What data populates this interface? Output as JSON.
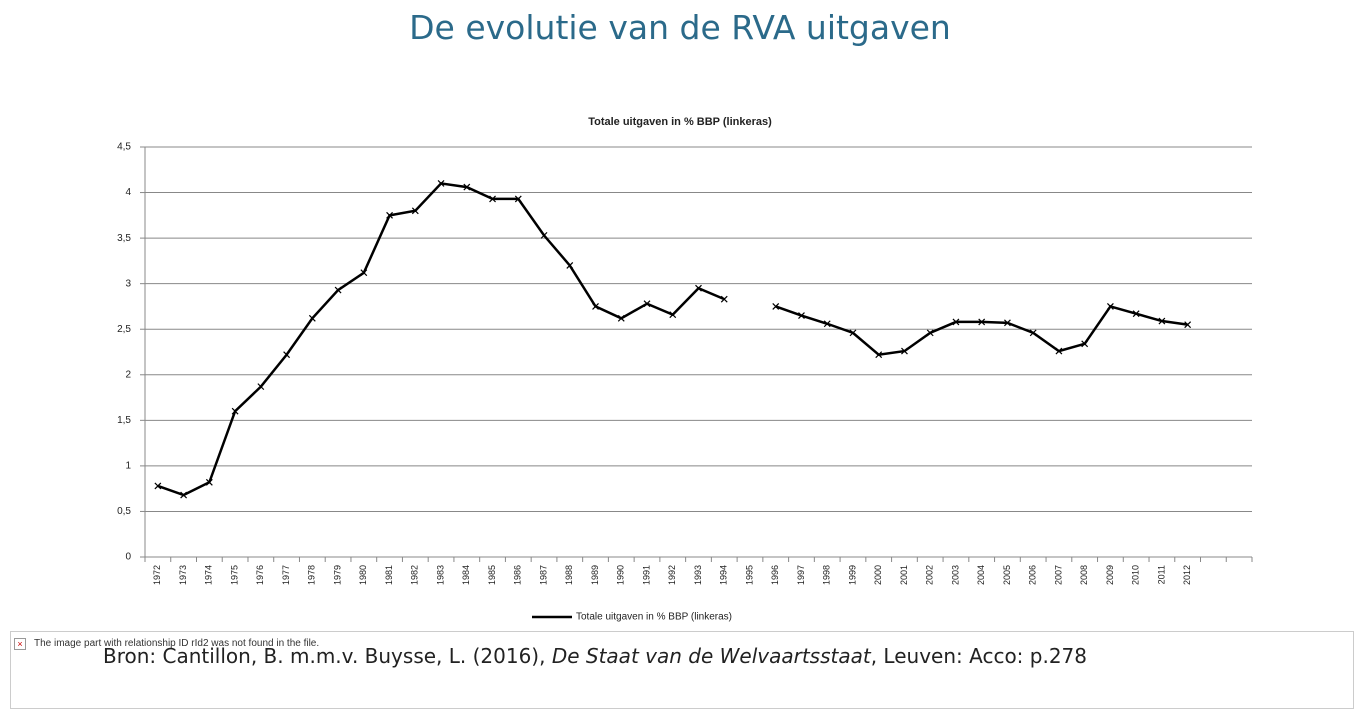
{
  "slide_title": "De evolutie van de RVA uitgaven",
  "chart_data": {
    "type": "line",
    "title": "Totale uitgaven in % BBP (linkeras)",
    "categories": [
      "1972",
      "1973",
      "1974",
      "1975",
      "1976",
      "1977",
      "1978",
      "1979",
      "1980",
      "1981",
      "1982",
      "1983",
      "1984",
      "1985",
      "1986",
      "1987",
      "1988",
      "1989",
      "1990",
      "1991",
      "1992",
      "1993",
      "1994",
      "1995",
      "1996",
      "1997",
      "1998",
      "1999",
      "2000",
      "2001",
      "2002",
      "2003",
      "2004",
      "2005",
      "2006",
      "2007",
      "2008",
      "2009",
      "2010",
      "2011",
      "2012",
      null,
      null
    ],
    "series": [
      {
        "name": "Totale uitgaven in % BBP (linkeras)",
        "color": "#000000",
        "values": [
          0.78,
          0.68,
          0.82,
          1.6,
          1.87,
          2.22,
          2.62,
          2.93,
          3.12,
          3.75,
          3.8,
          4.1,
          4.06,
          3.93,
          3.93,
          3.53,
          3.2,
          2.75,
          2.62,
          2.78,
          2.66,
          2.95,
          2.83,
          null,
          2.75,
          2.65,
          2.56,
          2.46,
          2.22,
          2.26,
          2.46,
          2.58,
          2.58,
          2.57,
          2.46,
          2.26,
          2.34,
          2.75,
          2.67,
          2.59,
          2.55,
          null,
          null
        ]
      }
    ],
    "ylim": [
      0,
      4.5
    ],
    "yticks": [
      0,
      {
        "value": 0.5,
        "label": "0,5"
      },
      1,
      {
        "value": 1.5,
        "label": "1,5"
      },
      2,
      {
        "value": 2.5,
        "label": "2,5"
      },
      3,
      {
        "value": 3.5,
        "label": "3,5"
      },
      4,
      {
        "value": 4.5,
        "label": "4,5"
      }
    ],
    "grid": true,
    "legend": "bottom"
  },
  "missing_image": "The image part with relationship ID rId2 was not found in the file.",
  "source": {
    "prefix": "Bron: Cantillon, B. m.m.v. Buysse, L. (2016), ",
    "italic": "De Staat van de Welvaartsstaat",
    "suffix": ", Leuven: Acco: p.278"
  }
}
